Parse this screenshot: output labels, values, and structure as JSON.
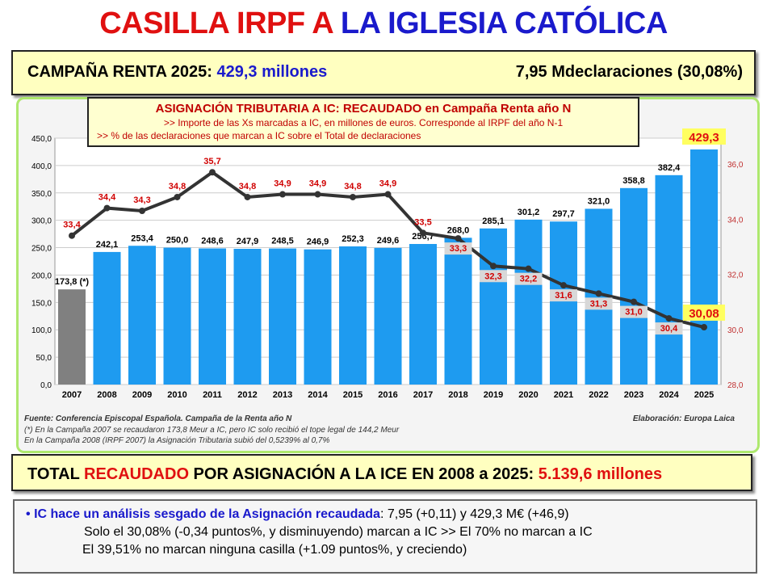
{
  "title": {
    "part1": "CASILLA IRPF A ",
    "part2": "LA IGLESIA CATÓLICA"
  },
  "campaign": {
    "label": "CAMPAÑA RENTA 2025: ",
    "amount": "429,3 millones",
    "declarations": "7,95 Mdeclaraciones (30,08%)"
  },
  "legend": {
    "heading": "ASIGNACIÓN TRIBUTARIA A IC: RECAUDADO en Campaña Renta año N",
    "line1": ">> Importe de las Xs marcadas a IC, en millones de euros. Corresponde al IRPF del año N-1",
    "line2": ">> % de las declaraciones que marcan a IC sobre el Total de declaraciones"
  },
  "notes": {
    "source": "Fuente: Conferencia Episcopal Española. Campaña de la Renta año N",
    "author": "Elaboración: Europa Laica",
    "note1": "(*) En la Campaña 2007 se recaudaron 173,8 Meur a IC, pero IC solo recibió el tope legal de 144,2 Meur",
    "note2": "En la Campaña 2008 (IRPF 2007) la Asignación Tributaria subió del 0,5239% al 0,7%"
  },
  "total": {
    "part1": "TOTAL ",
    "part2": "RECAUDADO",
    "part3": " POR ASIGNACIÓN A LA ICE EN 2008 a 2025: ",
    "amount": "5.139,6 millones"
  },
  "analysis": {
    "bullet": "•",
    "heading": "IC hace un análisis sesgado de la Asignación recaudada",
    "rest": ": 7,95 (+0,11) y 429,3 M€ (+46,9)",
    "line2": "Solo el 30,08% (-0,34 puntos%, y disminuyendo) marcan a IC >> El 70% no marcan a IC",
    "line3": "El 39,51% no marcan ninguna casilla (+1.09 puntos%, y creciendo)"
  },
  "colors": {
    "bar": "#1e9bf0",
    "bar2007": "#808080",
    "line": "#333333",
    "pctLabel": "#d00000",
    "red": "#e01010",
    "blue": "#1a1acc"
  },
  "chart_data": {
    "type": "bar+line",
    "categories": [
      "2007",
      "2008",
      "2009",
      "2010",
      "2011",
      "2012",
      "2013",
      "2014",
      "2015",
      "2016",
      "2017",
      "2018",
      "2019",
      "2020",
      "2021",
      "2022",
      "2023",
      "2024",
      "2025"
    ],
    "series": [
      {
        "axis": "left",
        "type": "bar",
        "values": [
          173.8,
          242.1,
          253.4,
          250.0,
          248.6,
          247.9,
          248.5,
          246.9,
          252.3,
          249.6,
          256.7,
          268.0,
          285.1,
          301.2,
          297.7,
          321.0,
          358.8,
          382.4,
          429.3
        ],
        "labels": [
          "173,8 (*)",
          "242,1",
          "253,4",
          "250,0",
          "248,6",
          "247,9",
          "248,5",
          "246,9",
          "252,3",
          "249,6",
          "256,7",
          "268,0",
          "285,1",
          "301,2",
          "297,7",
          "321,0",
          "358,8",
          "382,4",
          "429,3"
        ]
      },
      {
        "axis": "right",
        "type": "line",
        "values": [
          33.4,
          34.4,
          34.3,
          34.8,
          35.7,
          34.8,
          34.9,
          34.9,
          34.8,
          34.9,
          33.5,
          33.3,
          32.3,
          32.2,
          31.6,
          31.3,
          31.0,
          30.4,
          30.08
        ],
        "labels": [
          "33,4",
          "34,4",
          "34,3",
          "34,8",
          "35,7",
          "34,8",
          "34,9",
          "34,9",
          "34,8",
          "34,9",
          "33,5",
          "33,3",
          "32,3",
          "32,2",
          "31,6",
          "31,3",
          "31,0",
          "30,4",
          "30,08"
        ]
      }
    ],
    "ylim_left": [
      0,
      450
    ],
    "yticks_left": [
      "0,0",
      "50,0",
      "100,0",
      "150,0",
      "200,0",
      "250,0",
      "300,0",
      "350,0",
      "400,0",
      "450,0"
    ],
    "ylim_right": [
      28,
      36
    ],
    "yticks_right": [
      "28,0",
      "30,0",
      "32,0",
      "34,0",
      "36,0"
    ],
    "grid": true
  }
}
